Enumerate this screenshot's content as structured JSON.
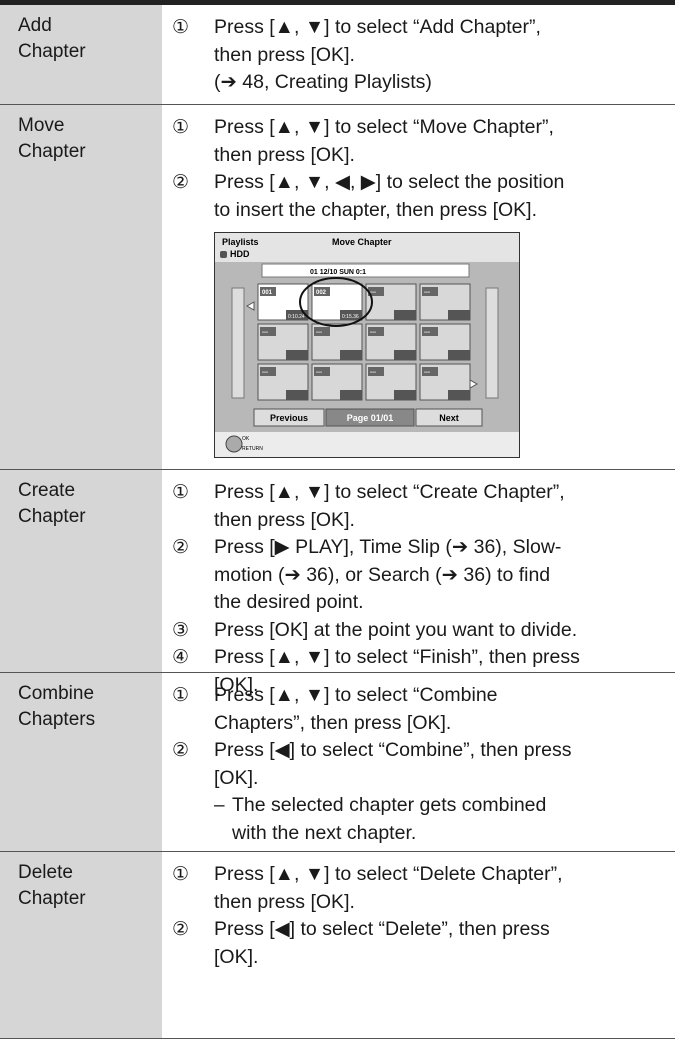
{
  "rows": [
    {
      "label": [
        "Add",
        "Chapter"
      ],
      "steps": [
        {
          "marker": "①",
          "lines": [
            "Press [▲, ▼] to select “Add Chapter”,",
            "then press [OK].",
            "(➔ 48, Creating Playlists)"
          ]
        }
      ]
    },
    {
      "label": [
        "Move",
        "Chapter"
      ],
      "steps": [
        {
          "marker": "①",
          "lines": [
            "Press [▲, ▼] to select “Move Chapter”,",
            "then press [OK]."
          ]
        },
        {
          "marker": "②",
          "lines": [
            "Press [▲, ▼, ◀, ▶] to select the position",
            "to insert the chapter, then press [OK]."
          ]
        }
      ]
    },
    {
      "label": [
        "Create",
        "Chapter"
      ],
      "steps": [
        {
          "marker": "①",
          "lines": [
            "Press [▲, ▼] to select “Create Chapter”,",
            "then press [OK]."
          ]
        },
        {
          "marker": "②",
          "lines": [
            "Press [▶ PLAY], Time Slip (➔ 36), Slow-",
            "motion (➔ 36), or Search (➔ 36) to find",
            "the desired point."
          ]
        },
        {
          "marker": "③",
          "lines": [
            "Press [OK] at the point you want to divide."
          ]
        },
        {
          "marker": "④",
          "lines": [
            "Press [▲, ▼] to select “Finish”, then press",
            "[OK]."
          ]
        }
      ]
    },
    {
      "label": [
        "Combine",
        "Chapters"
      ],
      "steps": [
        {
          "marker": "①",
          "lines": [
            "Press [▲, ▼] to select “Combine",
            "Chapters”, then press [OK]."
          ]
        },
        {
          "marker": "②",
          "lines": [
            "Press [◀] to select “Combine”, then press",
            "[OK]."
          ],
          "note": {
            "marker": "–",
            "lines": [
              "The selected chapter gets combined",
              "with the next chapter."
            ]
          }
        }
      ]
    },
    {
      "label": [
        "Delete",
        "Chapter"
      ],
      "steps": [
        {
          "marker": "①",
          "lines": [
            "Press [▲, ▼] to select “Delete Chapter”,",
            "then press [OK]."
          ]
        },
        {
          "marker": "②",
          "lines": [
            "Press [◀] to select “Delete”, then press",
            "[OK]."
          ]
        }
      ]
    }
  ],
  "screen": {
    "title": "Playlists",
    "mode": "Move Chapter",
    "drive": "HDD",
    "date": "01 12/10 SUN 0:1",
    "thumbs": [
      "001",
      "002",
      "---",
      "---",
      "---",
      "---",
      "---",
      "---",
      "---",
      "---",
      "---",
      "---"
    ],
    "times": [
      "0:10.24",
      "0:15.36"
    ],
    "previous": "Previous",
    "page": "Page 01/01",
    "next": "Next",
    "ok": "OK",
    "return": "RETURN"
  }
}
